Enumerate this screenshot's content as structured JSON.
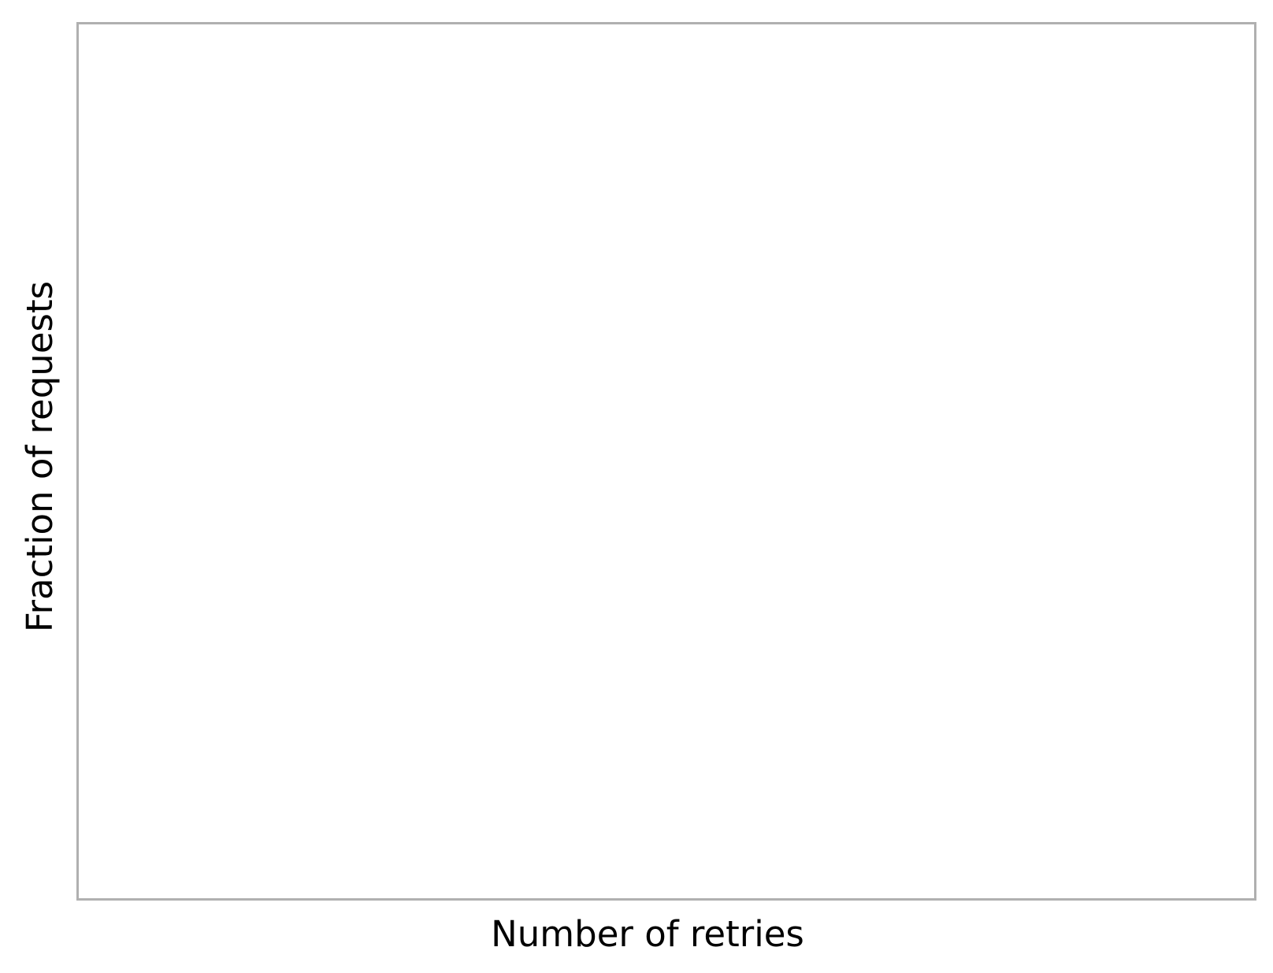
{
  "chart_data": {
    "type": "bar",
    "title": "",
    "xlabel": "Number of retries",
    "ylabel": "Fraction of requests",
    "categories": [],
    "series": [],
    "grid": false,
    "legend": "none",
    "frame_color": "#b0b0b0",
    "text_color": "#000000"
  }
}
